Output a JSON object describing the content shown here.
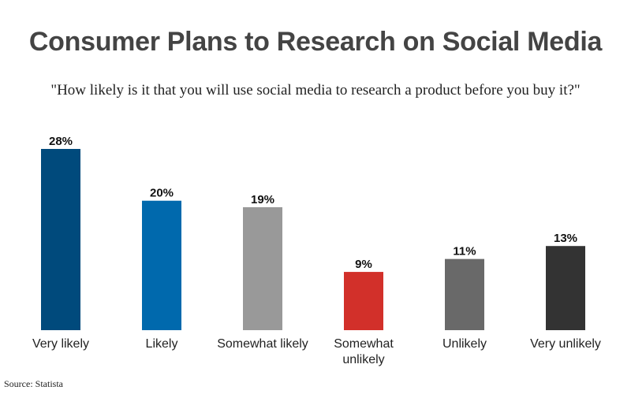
{
  "source": "Source: Statista",
  "chart_data": {
    "type": "bar",
    "title": "Consumer Plans to Research on Social Media",
    "subtitle": "\"How likely is it that you will use social media to research a product before you buy it?\"",
    "categories": [
      "Very likely",
      "Likely",
      "Somewhat likely",
      "Somewhat unlikely",
      "Unlikely",
      "Very unlikely"
    ],
    "category_lines": [
      [
        "Very likely"
      ],
      [
        "Likely"
      ],
      [
        "Somewhat likely"
      ],
      [
        "Somewhat",
        "unlikely"
      ],
      [
        "Unlikely"
      ],
      [
        "Very unlikely"
      ]
    ],
    "values": [
      28,
      20,
      19,
      9,
      11,
      13
    ],
    "value_labels": [
      "28%",
      "20%",
      "19%",
      "9%",
      "11%",
      "13%"
    ],
    "colors": [
      "#004a7c",
      "#0069ad",
      "#999999",
      "#d2302a",
      "#696969",
      "#333333"
    ],
    "xlabel": "",
    "ylabel": "",
    "ylim": [
      0,
      28
    ],
    "grid": false,
    "legend": "none"
  }
}
